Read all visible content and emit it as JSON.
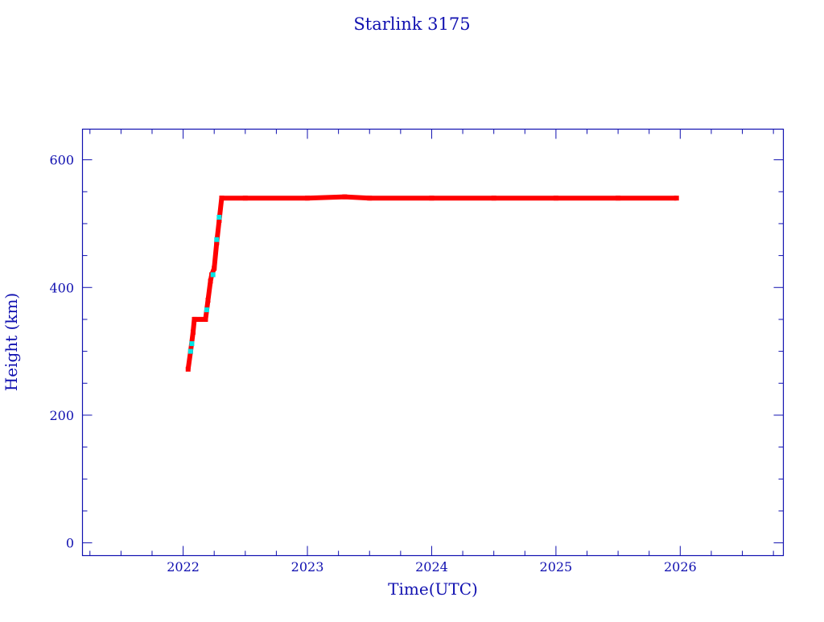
{
  "chart_data": {
    "type": "scatter",
    "title": "Starlink 3175",
    "xlabel": "Time(UTC)",
    "ylabel": "Height (km)",
    "xlim": [
      2021.19,
      2026.83
    ],
    "ylim": [
      -20,
      648
    ],
    "xticks": [
      "2022",
      "2023",
      "2024",
      "2025",
      "2026"
    ],
    "yticks": [
      "0",
      "200",
      "400",
      "600"
    ],
    "grid": false,
    "colors": {
      "axis": "#1010b0",
      "points": "#ff0000",
      "highlight_points": "#00e5e5"
    },
    "series": [
      {
        "x": [
          2022.04,
          2022.06,
          2022.08,
          2022.09,
          2022.1,
          2022.14,
          2022.18,
          2022.2,
          2022.22,
          2022.23,
          2022.25,
          2022.27,
          2022.29,
          2022.31,
          2022.5,
          2023.0,
          2023.3,
          2023.5,
          2024.0,
          2024.5,
          2025.0,
          2025.5,
          2025.97
        ],
        "y": [
          272,
          300,
          330,
          350,
          350,
          350,
          350,
          380,
          410,
          420,
          430,
          470,
          505,
          540,
          540,
          540,
          542,
          540,
          540,
          540,
          540,
          540,
          540
        ]
      },
      {
        "x": [
          2022.06,
          2022.07,
          2022.19,
          2022.24,
          2022.27,
          2022.29
        ],
        "y": [
          300,
          312,
          365,
          420,
          475,
          510
        ]
      }
    ]
  }
}
